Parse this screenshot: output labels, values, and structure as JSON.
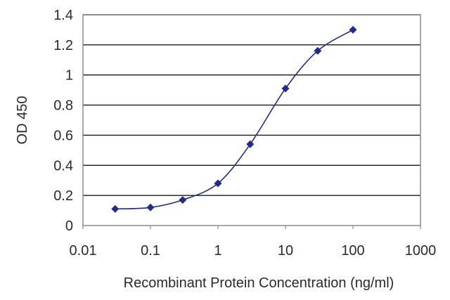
{
  "chart_data": {
    "type": "scatter",
    "title": "",
    "xlabel": "Recombinant Protein Concentration (ng/ml)",
    "ylabel": "OD 450",
    "x_scale": "log",
    "xlim": [
      0.01,
      1000
    ],
    "ylim": [
      0,
      1.4
    ],
    "x_ticks": [
      0.01,
      0.1,
      1,
      10,
      100,
      1000
    ],
    "x_tick_labels": [
      "0.01",
      "0.1",
      "1",
      "10",
      "100",
      "1000"
    ],
    "y_ticks": [
      0,
      0.2,
      0.4,
      0.6,
      0.8,
      1,
      1.2,
      1.4
    ],
    "y_tick_labels": [
      "0",
      "0.2",
      "0.4",
      "0.6",
      "0.8",
      "1",
      "1.2",
      "1.4"
    ],
    "grid": "horizontal",
    "legend": "none",
    "series": [
      {
        "x": [
          0.03,
          0.1,
          0.3,
          1,
          3,
          10,
          30,
          100
        ],
        "y": [
          0.11,
          0.12,
          0.17,
          0.28,
          0.54,
          0.91,
          1.16,
          1.3
        ],
        "marker": "diamond",
        "fit": "smooth-curve"
      }
    ],
    "colors": {
      "series": "#1f2c8c",
      "grid": "#1a1a1a",
      "frame": "#8c8c8c"
    }
  }
}
